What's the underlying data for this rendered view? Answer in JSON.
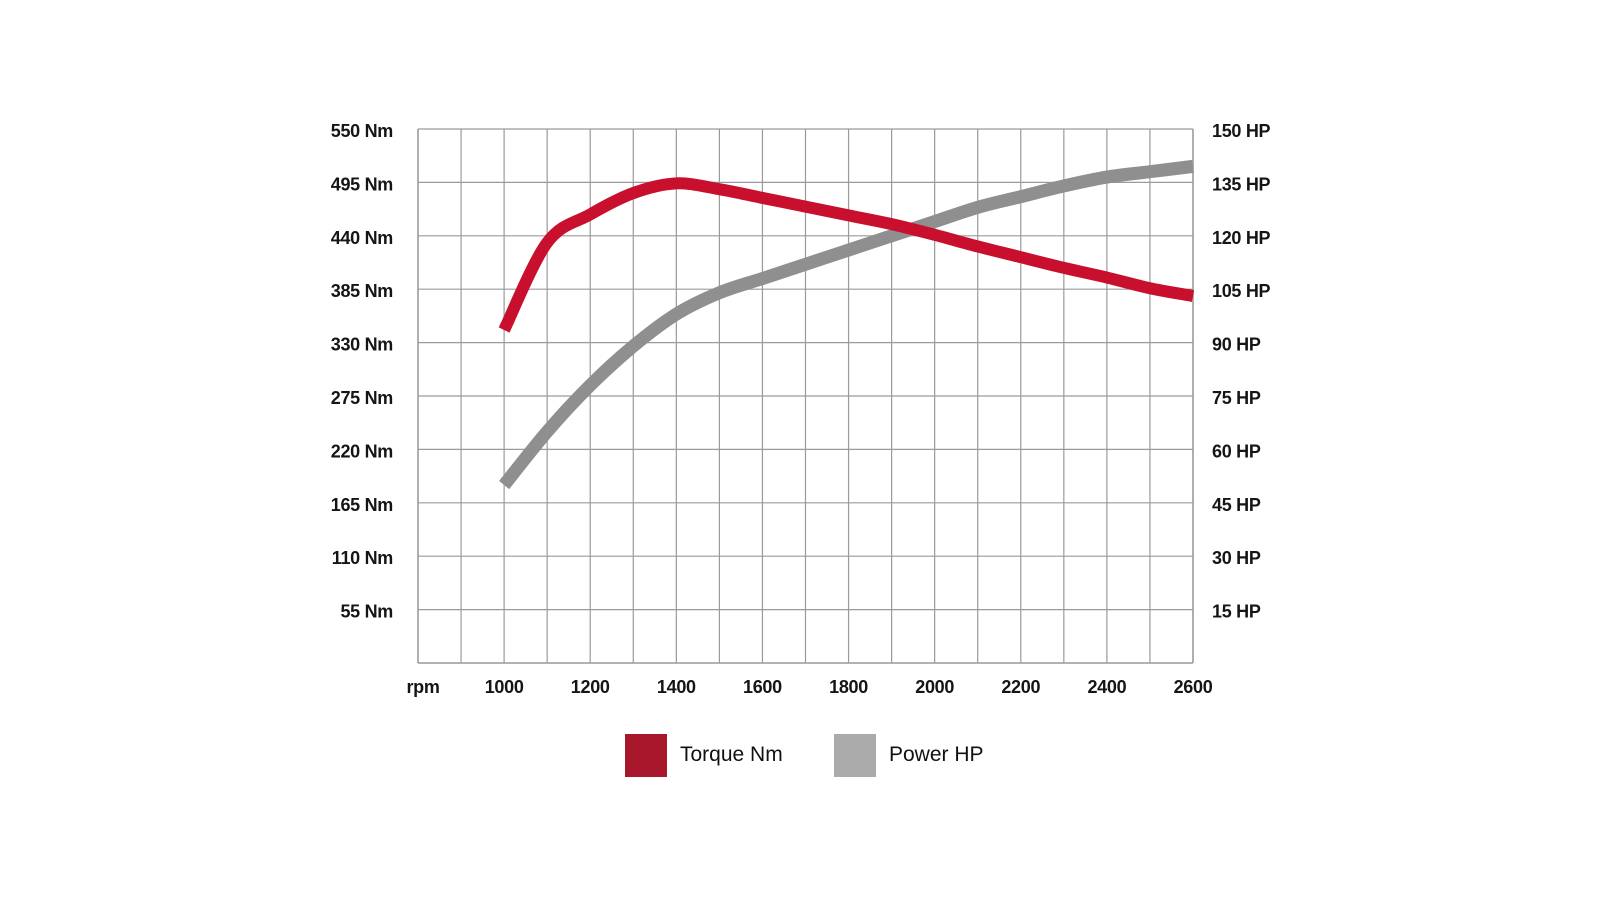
{
  "chart_data": {
    "type": "line",
    "title": "",
    "xlabel": "rpm",
    "ylabel_left": "Torque (Nm)",
    "ylabel_right": "Power (HP)",
    "x_axis": {
      "label": "rpm",
      "range": [
        800,
        2600
      ],
      "gridline_step": 100,
      "tick_labels": [
        "1000",
        "1200",
        "1400",
        "1600",
        "1800",
        "2000",
        "2200",
        "2400",
        "2600"
      ],
      "tick_values": [
        1000,
        1200,
        1400,
        1600,
        1800,
        2000,
        2200,
        2400,
        2600
      ]
    },
    "y_axis_left": {
      "range": [
        0,
        550
      ],
      "step": 55,
      "tick_labels": [
        "550 Nm",
        "495 Nm",
        "440 Nm",
        "385 Nm",
        "330 Nm",
        "275 Nm",
        "220 Nm",
        "165 Nm",
        "110 Nm",
        "55 Nm"
      ],
      "tick_values": [
        550,
        495,
        440,
        385,
        330,
        275,
        220,
        165,
        110,
        55
      ]
    },
    "y_axis_right": {
      "range": [
        0,
        150
      ],
      "step": 15,
      "tick_labels": [
        "150 HP",
        "135 HP",
        "120 HP",
        "105 HP",
        "90 HP",
        "75 HP",
        "60 HP",
        "45 HP",
        "30 HP",
        "15 HP"
      ],
      "tick_values": [
        150,
        135,
        120,
        105,
        90,
        75,
        60,
        45,
        30,
        15
      ]
    },
    "grid": true,
    "legend_position": "bottom",
    "x": [
      1000,
      1100,
      1200,
      1300,
      1400,
      1500,
      1600,
      1700,
      1800,
      1900,
      2000,
      2100,
      2200,
      2300,
      2400,
      2500,
      2600
    ],
    "series": [
      {
        "name": "Torque Nm",
        "axis": "left",
        "color": "#c8102e",
        "legend_color": "#a8172b",
        "values": [
          343,
          433,
          462,
          484,
          494,
          488,
          479,
          470,
          461,
          452,
          441,
          429,
          418,
          407,
          397,
          386,
          378
        ]
      },
      {
        "name": "Power HP",
        "axis": "right",
        "color": "#8f8f8f",
        "legend_color": "#ababab",
        "values": [
          50,
          65,
          78,
          89,
          98,
          104,
          108,
          112,
          116,
          120,
          124,
          128,
          131,
          134,
          136.5,
          138,
          139.5
        ]
      }
    ]
  },
  "legend": {
    "items": [
      {
        "label": "Torque Nm",
        "color": "#a8172b"
      },
      {
        "label": "Power HP",
        "color": "#ababab"
      }
    ]
  },
  "colors": {
    "grid": "#9a9a9a",
    "axis": "#a0a0a0",
    "text": "#151515",
    "background": "#ffffff"
  }
}
